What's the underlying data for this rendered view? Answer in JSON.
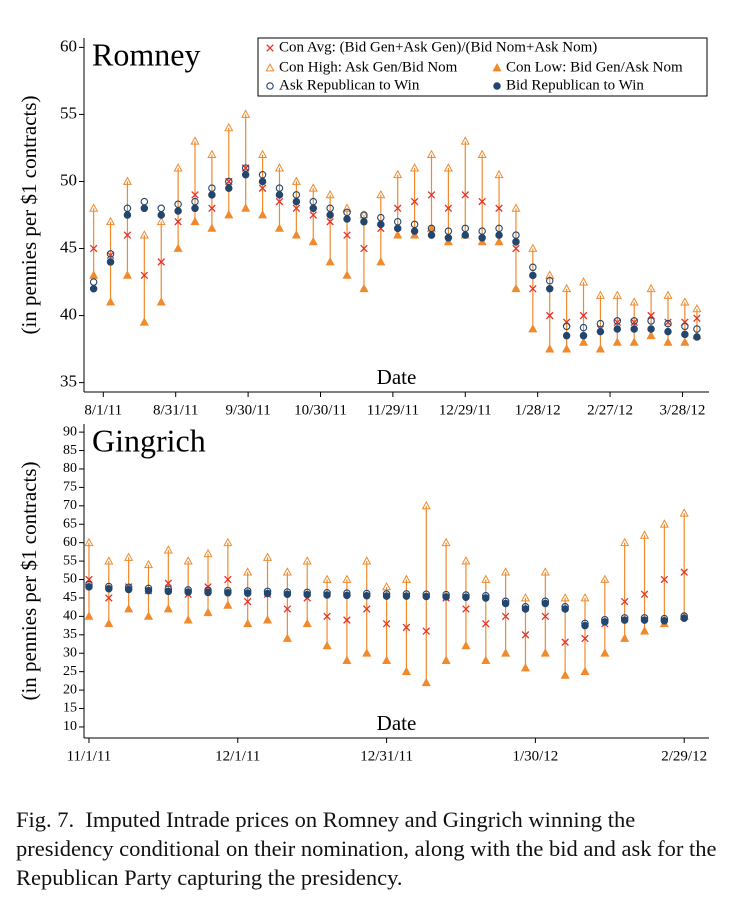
{
  "chart_data": [
    {
      "type": "line",
      "title": "Romney",
      "xlabel": "Date",
      "ylabel": "(in pennies per $1 contracts)",
      "legend": "upper right",
      "xlim": [
        "2011-07-24",
        "2012-04-08"
      ],
      "xticks": [
        {
          "value": "2011-08-01",
          "label": "8/1/11"
        },
        {
          "value": "2011-08-31",
          "label": "8/31/11"
        },
        {
          "value": "2011-09-30",
          "label": "9/30/11"
        },
        {
          "value": "2011-10-30",
          "label": "10/30/11"
        },
        {
          "value": "2011-11-29",
          "label": "11/29/11"
        },
        {
          "value": "2011-12-29",
          "label": "12/29/11"
        },
        {
          "value": "2012-01-28",
          "label": "1/28/12"
        },
        {
          "value": "2012-02-27",
          "label": "2/27/12"
        },
        {
          "value": "2012-03-28",
          "label": "3/28/12"
        }
      ],
      "ylim": [
        34.3,
        60.7
      ],
      "yticks": [
        35,
        40,
        45,
        50,
        55,
        60
      ],
      "x": [
        "2011-07-28",
        "2011-08-04",
        "2011-08-11",
        "2011-08-18",
        "2011-08-25",
        "2011-09-01",
        "2011-09-08",
        "2011-09-15",
        "2011-09-22",
        "2011-09-29",
        "2011-10-06",
        "2011-10-13",
        "2011-10-20",
        "2011-10-27",
        "2011-11-03",
        "2011-11-10",
        "2011-11-17",
        "2011-11-24",
        "2011-12-01",
        "2011-12-08",
        "2011-12-15",
        "2011-12-22",
        "2011-12-29",
        "2012-01-05",
        "2012-01-12",
        "2012-01-19",
        "2012-01-26",
        "2012-02-02",
        "2012-02-09",
        "2012-02-16",
        "2012-02-23",
        "2012-03-01",
        "2012-03-08",
        "2012-03-15",
        "2012-03-22",
        "2012-03-29",
        "2012-04-03"
      ],
      "series": [
        {
          "name": "Con Avg: (Bid Gen+Ask Gen)/(Bid Nom+Ask Nom)",
          "marker": "x",
          "color": "#e63228",
          "values": [
            45,
            44.5,
            46,
            43,
            44,
            47,
            49,
            48,
            50,
            51,
            49.5,
            48.5,
            48,
            47.5,
            47,
            46,
            45,
            46.5,
            48,
            48.5,
            49,
            48,
            49,
            48.5,
            48,
            45,
            42,
            40,
            39.5,
            40,
            39,
            39.5,
            39.5,
            40,
            39.5,
            39.5,
            39.8
          ]
        },
        {
          "name": "Con High: Ask Gen/Bid Nom",
          "marker": "triangle-open",
          "color": "#f08a2c",
          "values": [
            48,
            47,
            50,
            46,
            47,
            51,
            53,
            52,
            54,
            55,
            52,
            51,
            50,
            49.5,
            49,
            48,
            47.5,
            49,
            50.5,
            51,
            52,
            51,
            53,
            52,
            50.5,
            48,
            45,
            43,
            42,
            42.5,
            41.5,
            41.5,
            41,
            42,
            41.5,
            41,
            40.5
          ]
        },
        {
          "name": "Con Low: Bid Gen/Ask Nom",
          "marker": "triangle",
          "color": "#f08a2c",
          "values": [
            43,
            41,
            43,
            39.5,
            41,
            45,
            47,
            46.5,
            47.5,
            48,
            47.5,
            46.5,
            46,
            45.5,
            44,
            43,
            42,
            44,
            46,
            46,
            46.5,
            45.5,
            46,
            45.5,
            45.5,
            42,
            39,
            37.5,
            37.5,
            38,
            37.5,
            38,
            38,
            38.5,
            38,
            38,
            38.5
          ]
        },
        {
          "name": "Ask Republican to Win",
          "marker": "circle-open",
          "color": "#23466e",
          "values": [
            42.5,
            44.6,
            48,
            48.5,
            48,
            48.3,
            48.5,
            49.5,
            50,
            51,
            50.5,
            49.5,
            49,
            48.5,
            48,
            47.7,
            47.5,
            47.3,
            47,
            46.8,
            46.5,
            46.3,
            46.5,
            46.3,
            46.5,
            46,
            43.6,
            42.6,
            39.2,
            39.1,
            39.4,
            39.6,
            39.6,
            39.6,
            39.4,
            39.2,
            39
          ]
        },
        {
          "name": "Bid Republican to Win",
          "marker": "circle",
          "color": "#23466e",
          "values": [
            42,
            44,
            47.5,
            48,
            47.5,
            47.8,
            48,
            49,
            49.5,
            50.5,
            50,
            49,
            48.5,
            48,
            47.5,
            47.2,
            47,
            46.8,
            46.5,
            46.3,
            46,
            45.8,
            46,
            45.8,
            46,
            45.5,
            43,
            42,
            38.5,
            38.5,
            38.8,
            39,
            39,
            39,
            38.8,
            38.6,
            38.4
          ]
        }
      ]
    },
    {
      "type": "line",
      "title": "Gingrich",
      "xlabel": "Date",
      "ylabel": "(in pennies per $1 contracts)",
      "xlim": [
        "2011-10-31",
        "2012-03-05"
      ],
      "xticks": [
        {
          "value": "2011-11-01",
          "label": "11/1/11"
        },
        {
          "value": "2011-12-01",
          "label": "12/1/11"
        },
        {
          "value": "2011-12-31",
          "label": "12/31/11"
        },
        {
          "value": "2012-01-30",
          "label": "1/30/12"
        },
        {
          "value": "2012-02-29",
          "label": "2/29/12"
        }
      ],
      "ylim": [
        7,
        92.2
      ],
      "yticks": [
        10,
        15,
        20,
        25,
        30,
        35,
        40,
        45,
        50,
        55,
        60,
        65,
        70,
        75,
        80,
        85,
        90
      ],
      "x": [
        "2011-11-01",
        "2011-11-05",
        "2011-11-09",
        "2011-11-13",
        "2011-11-17",
        "2011-11-21",
        "2011-11-25",
        "2011-11-29",
        "2011-12-03",
        "2011-12-07",
        "2011-12-11",
        "2011-12-15",
        "2011-12-19",
        "2011-12-23",
        "2011-12-27",
        "2011-12-31",
        "2012-01-04",
        "2012-01-08",
        "2012-01-12",
        "2012-01-16",
        "2012-01-20",
        "2012-01-24",
        "2012-01-28",
        "2012-02-01",
        "2012-02-05",
        "2012-02-09",
        "2012-02-13",
        "2012-02-17",
        "2012-02-21",
        "2012-02-25",
        "2012-02-29"
      ],
      "series": [
        {
          "marker": "x",
          "color": "#e63228",
          "values": [
            50,
            45,
            48,
            47,
            49,
            46,
            48,
            50,
            44,
            46,
            42,
            45,
            40,
            39,
            42,
            38,
            37,
            36,
            45,
            42,
            38,
            40,
            35,
            40,
            33,
            34,
            38,
            44,
            46,
            50,
            52
          ]
        },
        {
          "marker": "triangle-open",
          "color": "#f08a2c",
          "values": [
            60,
            55,
            56,
            54,
            58,
            55,
            57,
            60,
            52,
            56,
            52,
            55,
            50,
            50,
            55,
            48,
            50,
            70,
            60,
            55,
            50,
            52,
            45,
            52,
            45,
            45,
            50,
            60,
            62,
            65,
            68
          ]
        },
        {
          "marker": "triangle",
          "color": "#f08a2c",
          "values": [
            40,
            38,
            42,
            40,
            42,
            39,
            41,
            43,
            38,
            39,
            34,
            38,
            32,
            28,
            30,
            28,
            25,
            22,
            28,
            32,
            28,
            30,
            26,
            30,
            24,
            25,
            30,
            34,
            36,
            38,
            40
          ]
        },
        {
          "marker": "circle-open",
          "color": "#23466e",
          "values": [
            48.6,
            48.1,
            47.9,
            47.6,
            47.4,
            47.2,
            47.1,
            47,
            46.9,
            46.8,
            46.6,
            46.5,
            46.4,
            46.3,
            46.2,
            46.1,
            46.1,
            46,
            45.9,
            45.8,
            45.6,
            44.1,
            42.6,
            44.1,
            42.6,
            38.1,
            39.1,
            39.6,
            39.6,
            39.4,
            40.1
          ]
        },
        {
          "marker": "circle",
          "color": "#23466e",
          "values": [
            48,
            47.5,
            47.3,
            47,
            46.8,
            46.6,
            46.5,
            46.4,
            46.3,
            46.2,
            46,
            45.9,
            45.8,
            45.7,
            45.6,
            45.5,
            45.5,
            45.4,
            45.3,
            45.2,
            45,
            43.5,
            42,
            43.5,
            42,
            37.5,
            38.5,
            39,
            39,
            38.8,
            39.5
          ]
        }
      ]
    }
  ],
  "caption": "Fig. 7.  Imputed Intrade prices on Romney and Gingrich winning the presidency conditional on their nomination, along with the bid and ask for the Republican Party capturing the presidency."
}
